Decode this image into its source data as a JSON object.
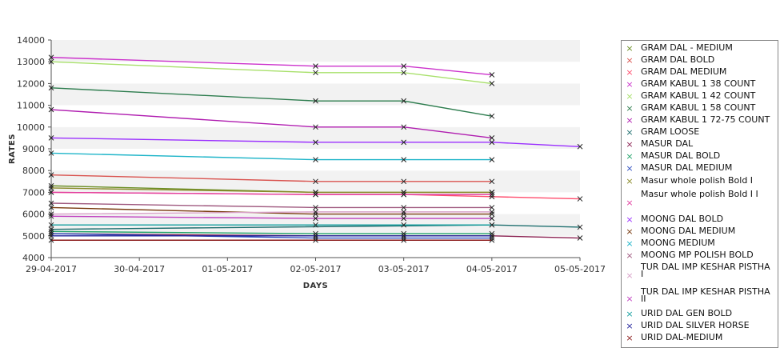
{
  "chart_data": {
    "type": "line",
    "title": "",
    "xlabel": "DAYS",
    "ylabel": "RATES",
    "x": [
      "29-04-2017",
      "30-04-2017",
      "01-05-2017",
      "02-05-2017",
      "03-05-2017",
      "04-05-2017",
      "05-05-2017"
    ],
    "ylim": [
      4000,
      14000
    ],
    "yticks": [
      4000,
      5000,
      6000,
      7000,
      8000,
      9000,
      10000,
      11000,
      12000,
      13000,
      14000
    ],
    "grid": "horizontal alternating bands",
    "legend_position": "right",
    "series": [
      {
        "name": "GRAM DAL - MEDIUM",
        "color": "#6b8e23",
        "points": [
          [
            "29-04-2017",
            7300
          ],
          [
            "02-05-2017",
            7000
          ],
          [
            "03-05-2017",
            7000
          ],
          [
            "04-05-2017",
            7000
          ]
        ]
      },
      {
        "name": "GRAM DAL BOLD",
        "color": "#d9534f",
        "points": [
          [
            "29-04-2017",
            7800
          ],
          [
            "02-05-2017",
            7500
          ],
          [
            "03-05-2017",
            7500
          ],
          [
            "04-05-2017",
            7500
          ]
        ]
      },
      {
        "name": "GRAM DAL MEDIUM",
        "color": "#ff4d6d",
        "points": [
          [
            "29-04-2017",
            7000
          ],
          [
            "02-05-2017",
            6900
          ],
          [
            "03-05-2017",
            6900
          ],
          [
            "04-05-2017",
            6800
          ],
          [
            "05-05-2017",
            6700
          ]
        ]
      },
      {
        "name": "GRAM KABUL 1 38 COUNT",
        "color": "#cc33cc",
        "points": [
          [
            "29-04-2017",
            13200
          ],
          [
            "02-05-2017",
            12800
          ],
          [
            "03-05-2017",
            12800
          ],
          [
            "04-05-2017",
            12400
          ]
        ]
      },
      {
        "name": "GRAM KABUL 1 42 COUNT",
        "color": "#a8e06b",
        "points": [
          [
            "29-04-2017",
            13000
          ],
          [
            "02-05-2017",
            12500
          ],
          [
            "03-05-2017",
            12500
          ],
          [
            "04-05-2017",
            12000
          ]
        ]
      },
      {
        "name": "GRAM KABUL 1 58 COUNT",
        "color": "#2e7d4f",
        "points": [
          [
            "29-04-2017",
            11800
          ],
          [
            "02-05-2017",
            11200
          ],
          [
            "03-05-2017",
            11200
          ],
          [
            "04-05-2017",
            10500
          ]
        ]
      },
      {
        "name": "GRAM KABUL 1 72-75 COUNT",
        "color": "#b01eb0",
        "points": [
          [
            "29-04-2017",
            10800
          ],
          [
            "02-05-2017",
            10000
          ],
          [
            "03-05-2017",
            10000
          ],
          [
            "04-05-2017",
            9500
          ]
        ]
      },
      {
        "name": "GRAM LOOSE",
        "color": "#1f6f6f",
        "points": [
          [
            "29-04-2017",
            5300
          ],
          [
            "04-05-2017",
            5500
          ],
          [
            "05-05-2017",
            5400
          ]
        ]
      },
      {
        "name": "MASUR DAL",
        "color": "#8b2252",
        "points": [
          [
            "29-04-2017",
            5100
          ],
          [
            "02-05-2017",
            5000
          ],
          [
            "03-05-2017",
            5000
          ],
          [
            "04-05-2017",
            5000
          ],
          [
            "05-05-2017",
            4900
          ]
        ]
      },
      {
        "name": "MASUR DAL BOLD",
        "color": "#23a36b",
        "points": [
          [
            "29-04-2017",
            5200
          ],
          [
            "02-05-2017",
            5100
          ],
          [
            "03-05-2017",
            5100
          ],
          [
            "04-05-2017",
            5100
          ]
        ]
      },
      {
        "name": "MASUR DAL MEDIUM",
        "color": "#2f4fc0",
        "points": [
          [
            "29-04-2017",
            5100
          ],
          [
            "02-05-2017",
            4900
          ],
          [
            "03-05-2017",
            4900
          ],
          [
            "04-05-2017",
            4900
          ]
        ]
      },
      {
        "name": "Masur whole polish Bold I",
        "color": "#8a8a2a",
        "points": [
          [
            "29-04-2017",
            7200
          ],
          [
            "02-05-2017",
            7000
          ],
          [
            "03-05-2017",
            7000
          ],
          [
            "04-05-2017",
            7000
          ]
        ]
      },
      {
        "name": "Masur whole polish Bold I I",
        "color": "#e23fa0",
        "points": [
          [
            "29-04-2017",
            7000
          ],
          [
            "02-05-2017",
            6900
          ],
          [
            "03-05-2017",
            6900
          ],
          [
            "04-05-2017",
            6900
          ]
        ]
      },
      {
        "name": "MOONG DAL BOLD",
        "color": "#9b30ff",
        "points": [
          [
            "29-04-2017",
            9500
          ],
          [
            "02-05-2017",
            9300
          ],
          [
            "03-05-2017",
            9300
          ],
          [
            "04-05-2017",
            9300
          ],
          [
            "05-05-2017",
            9100
          ]
        ]
      },
      {
        "name": "MOONG DAL MEDIUM",
        "color": "#7a3b10",
        "points": [
          [
            "29-04-2017",
            6300
          ],
          [
            "02-05-2017",
            6000
          ],
          [
            "03-05-2017",
            6000
          ],
          [
            "04-05-2017",
            6000
          ]
        ]
      },
      {
        "name": "MOONG MEDIUM",
        "color": "#1fb5c9",
        "points": [
          [
            "29-04-2017",
            8800
          ],
          [
            "02-05-2017",
            8500
          ],
          [
            "03-05-2017",
            8500
          ],
          [
            "04-05-2017",
            8500
          ]
        ]
      },
      {
        "name": "MOONG MP POLISH BOLD",
        "color": "#a05a80",
        "points": [
          [
            "29-04-2017",
            6500
          ],
          [
            "02-05-2017",
            6300
          ],
          [
            "03-05-2017",
            6300
          ],
          [
            "04-05-2017",
            6300
          ]
        ]
      },
      {
        "name": "TUR DAL IMP KESHAR PISTHA I",
        "color": "#d8a0c8",
        "points": [
          [
            "29-04-2017",
            6000
          ],
          [
            "02-05-2017",
            6100
          ],
          [
            "03-05-2017",
            6100
          ],
          [
            "04-05-2017",
            6100
          ]
        ]
      },
      {
        "name": "TUR DAL IMP KESHAR PISTHA II",
        "color": "#c040c0",
        "points": [
          [
            "29-04-2017",
            5900
          ],
          [
            "02-05-2017",
            5800
          ],
          [
            "03-05-2017",
            5800
          ],
          [
            "04-05-2017",
            5800
          ]
        ]
      },
      {
        "name": "URID DAL GEN BOLD",
        "color": "#17a0a0",
        "points": [
          [
            "29-04-2017",
            5500
          ],
          [
            "02-05-2017",
            5500
          ],
          [
            "03-05-2017",
            5500
          ],
          [
            "04-05-2017",
            5500
          ]
        ]
      },
      {
        "name": "URID DAL SILVER HORSE",
        "color": "#23239b",
        "points": [
          [
            "29-04-2017",
            5000
          ],
          [
            "02-05-2017",
            5000
          ],
          [
            "03-05-2017",
            5000
          ],
          [
            "04-05-2017",
            5000
          ]
        ]
      },
      {
        "name": "URID DAL-MEDIUM",
        "color": "#8b1a1a",
        "points": [
          [
            "29-04-2017",
            4800
          ],
          [
            "02-05-2017",
            4800
          ],
          [
            "03-05-2017",
            4800
          ],
          [
            "04-05-2017",
            4800
          ]
        ]
      }
    ]
  }
}
